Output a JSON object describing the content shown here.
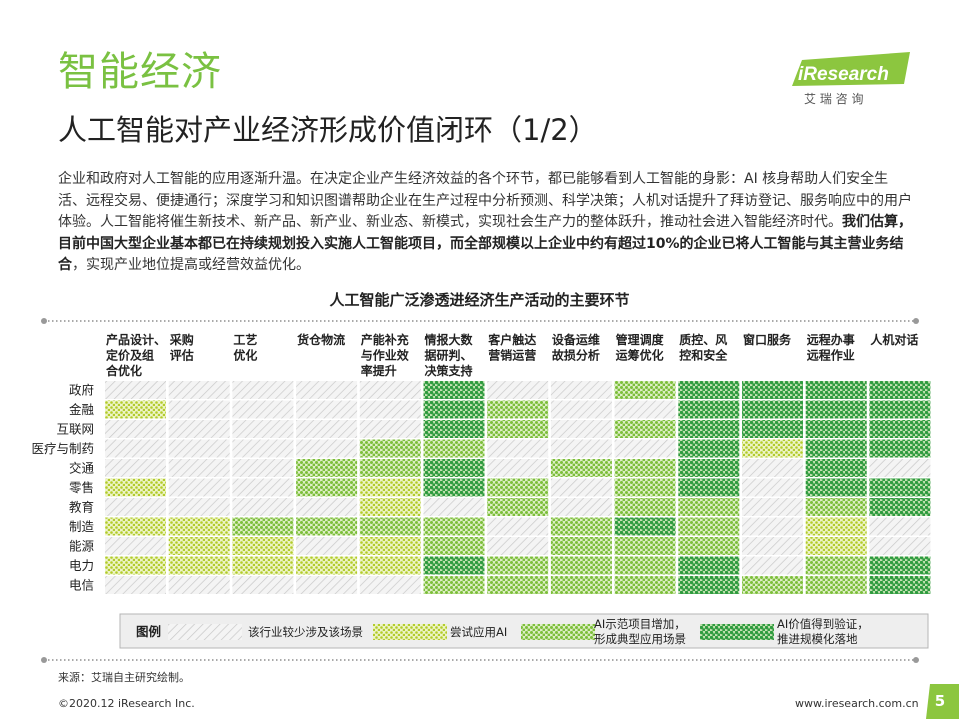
{
  "header": {
    "section_title": "智能经济",
    "main_title": "人工智能对产业经济形成价值闭环（1/2）",
    "logo": {
      "brand": "iResearch",
      "sub": "艾 瑞 咨 询"
    }
  },
  "intro": {
    "normal_text": "企业和政府对人工智能的应用逐渐升温。在决定企业产生经济效益的各个环节，都已能够看到人工智能的身影：AI 核身帮助人们安全生活、远程交易、便捷通行；深度学习和知识图谱帮助企业在生产过程中分析预测、科学决策；人机对话提升了拜访登记、服务响应中的用户体验。人工智能将催生新技术、新产品、新产业、新业态、新模式，实现社会生产力的整体跃升，推动社会进入智能经济时代。",
    "bold_text": "我们估算，目前中国大型企业基本都已在持续规划投入实施人工智能项目，而全部规模以上企业中约有超过10%的企业已将人工智能与其主营业务结合",
    "tail_text": "，实现产业地位提高或经营效益优化。"
  },
  "chart_data": {
    "type": "heatmap",
    "title": "人工智能广泛渗透进经济生产活动的主要环节",
    "columns": [
      [
        "产品设计、",
        "定价及组",
        "合优化"
      ],
      [
        "采购",
        "评估"
      ],
      [
        "工艺",
        "优化"
      ],
      [
        "货仓物流"
      ],
      [
        "产能补充",
        "与作业效",
        "率提升"
      ],
      [
        "情报大数",
        "据研判、",
        "决策支持"
      ],
      [
        "客户触达",
        "营销运营"
      ],
      [
        "设备运维",
        "故损分析"
      ],
      [
        "管理调度",
        "运筹优化"
      ],
      [
        "质控、风",
        "控和安全"
      ],
      [
        "窗口服务"
      ],
      [
        "远程办事",
        "远程作业"
      ],
      [
        "人机对话"
      ]
    ],
    "rows": [
      "政府",
      "金融",
      "互联网",
      "医疗与制药",
      "交通",
      "零售",
      "教育",
      "制造",
      "能源",
      "电力",
      "电信"
    ],
    "levels": [
      {
        "level": 0,
        "label": "该行业较少涉及该场景",
        "color": "#cccccc"
      },
      {
        "level": 1,
        "label": "尝试应用AI",
        "color": "#c6d93a"
      },
      {
        "level": 2,
        "label": "AI示范项目增加，形成典型应用场景",
        "color": "#8cc63f"
      },
      {
        "level": 3,
        "label": "AI价值得到验证，推进规模化落地",
        "color": "#2e9b3e"
      }
    ],
    "values": [
      [
        0,
        0,
        0,
        0,
        0,
        3,
        0,
        0,
        2,
        3,
        3,
        3,
        3
      ],
      [
        1,
        0,
        0,
        0,
        0,
        3,
        2,
        0,
        0,
        3,
        3,
        3,
        3
      ],
      [
        0,
        0,
        0,
        0,
        0,
        3,
        2,
        0,
        2,
        3,
        3,
        3,
        3
      ],
      [
        0,
        0,
        0,
        0,
        2,
        2,
        0,
        0,
        0,
        3,
        1,
        3,
        3
      ],
      [
        0,
        0,
        0,
        2,
        2,
        3,
        0,
        2,
        2,
        3,
        0,
        3,
        0
      ],
      [
        1,
        0,
        0,
        2,
        1,
        3,
        2,
        0,
        2,
        3,
        0,
        3,
        3
      ],
      [
        0,
        0,
        0,
        0,
        1,
        0,
        2,
        0,
        2,
        2,
        0,
        2,
        3
      ],
      [
        1,
        1,
        2,
        2,
        2,
        2,
        0,
        2,
        3,
        2,
        0,
        1,
        0
      ],
      [
        0,
        1,
        1,
        0,
        1,
        2,
        0,
        2,
        2,
        2,
        0,
        1,
        0
      ],
      [
        1,
        1,
        1,
        1,
        1,
        3,
        2,
        2,
        2,
        3,
        0,
        2,
        3
      ],
      [
        0,
        0,
        0,
        0,
        0,
        2,
        2,
        2,
        2,
        3,
        2,
        2,
        3
      ]
    ],
    "legend_title": "图例"
  },
  "footer": {
    "source": "来源：艾瑞自主研究绘制。",
    "copyright": "©2020.12 iResearch Inc.",
    "website": "www.iresearch.com.cn",
    "page_number": "5"
  }
}
